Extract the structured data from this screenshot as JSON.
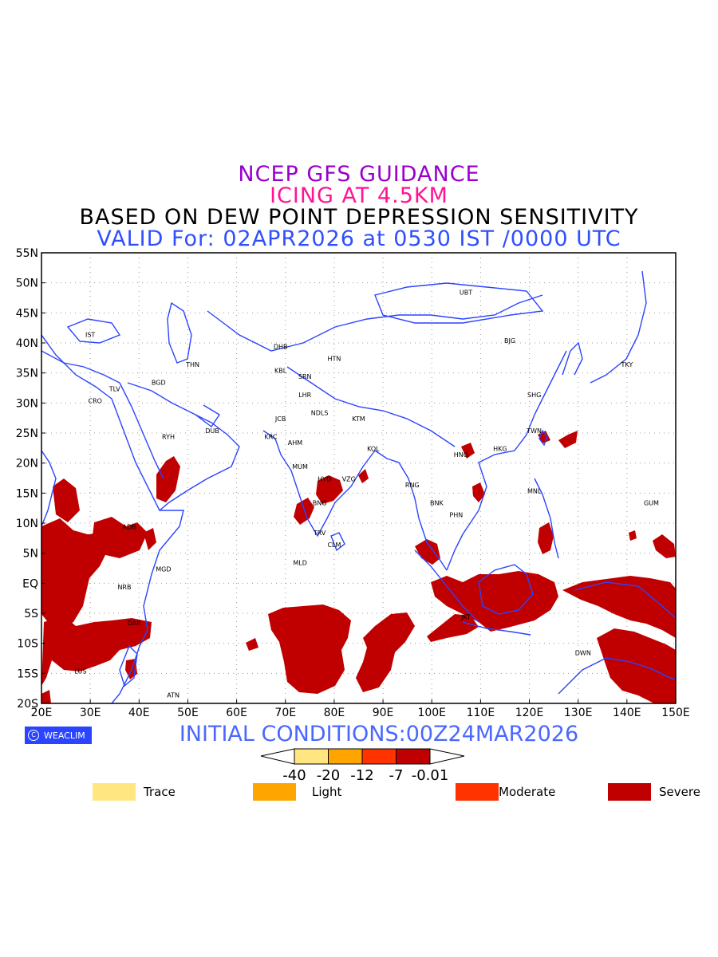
{
  "titles": {
    "line1": "NCEP GFS GUIDANCE",
    "line2": "ICING AT 4.5KM",
    "line3": "BASED ON DEW POINT DEPRESSION SENSITIVITY",
    "line4": "VALID For: 02APR2026 at 0530 IST /0000 UTC"
  },
  "initial_conditions": "INITIAL CONDITIONS:00Z24MAR2026",
  "logo_text": "WEACLIM",
  "axes": {
    "lon_labels": [
      "20E",
      "30E",
      "40E",
      "50E",
      "60E",
      "70E",
      "80E",
      "90E",
      "100E",
      "110E",
      "120E",
      "130E",
      "140E",
      "150E"
    ],
    "lat_labels": [
      "55N",
      "50N",
      "45N",
      "40N",
      "35N",
      "30N",
      "25N",
      "20N",
      "15N",
      "10N",
      "5N",
      "EQ",
      "5S",
      "10S",
      "15S",
      "20S"
    ]
  },
  "colorbar": {
    "ticks": [
      "-40",
      "-20",
      "-12",
      "-7",
      "-0.01"
    ],
    "colors": [
      "#ffe680",
      "#ffa500",
      "#ff3300",
      "#c00000"
    ]
  },
  "legend": [
    {
      "label": "Trace",
      "color": "#ffe680"
    },
    {
      "label": "Light",
      "color": "#ffa500"
    },
    {
      "label": "Moderate",
      "color": "#ff3300"
    },
    {
      "label": "Severe",
      "color": "#c00000"
    }
  ],
  "stations": [
    {
      "name": "IST",
      "lon": 30,
      "lat": 41
    },
    {
      "name": "TLV",
      "lon": 35,
      "lat": 32
    },
    {
      "name": "CRO",
      "lon": 31,
      "lat": 30
    },
    {
      "name": "BGD",
      "lon": 44,
      "lat": 33
    },
    {
      "name": "THN",
      "lon": 51,
      "lat": 36
    },
    {
      "name": "DHB",
      "lon": 69,
      "lat": 39
    },
    {
      "name": "HTN",
      "lon": 80,
      "lat": 37
    },
    {
      "name": "KBL",
      "lon": 69,
      "lat": 35
    },
    {
      "name": "SRN",
      "lon": 74,
      "lat": 34
    },
    {
      "name": "LHR",
      "lon": 74,
      "lat": 31
    },
    {
      "name": "JCB",
      "lon": 69,
      "lat": 27
    },
    {
      "name": "NDLS",
      "lon": 77,
      "lat": 28
    },
    {
      "name": "KTM",
      "lon": 85,
      "lat": 27
    },
    {
      "name": "RYH",
      "lon": 46,
      "lat": 24
    },
    {
      "name": "DUB",
      "lon": 55,
      "lat": 25
    },
    {
      "name": "KRC",
      "lon": 67,
      "lat": 24
    },
    {
      "name": "AHM",
      "lon": 72,
      "lat": 23
    },
    {
      "name": "KOL",
      "lon": 88,
      "lat": 22
    },
    {
      "name": "MUM",
      "lon": 73,
      "lat": 19
    },
    {
      "name": "HYD",
      "lon": 78,
      "lat": 17
    },
    {
      "name": "VZG",
      "lon": 83,
      "lat": 17
    },
    {
      "name": "BNG",
      "lon": 77,
      "lat": 13
    },
    {
      "name": "TRV",
      "lon": 77,
      "lat": 8
    },
    {
      "name": "CLM",
      "lon": 80,
      "lat": 6
    },
    {
      "name": "MLD",
      "lon": 73,
      "lat": 3
    },
    {
      "name": "ADB",
      "lon": 38,
      "lat": 9
    },
    {
      "name": "MGD",
      "lon": 45,
      "lat": 2
    },
    {
      "name": "NRB",
      "lon": 37,
      "lat": -1
    },
    {
      "name": "DAR",
      "lon": 39,
      "lat": -7
    },
    {
      "name": "LUS",
      "lon": 28,
      "lat": -15
    },
    {
      "name": "ATN",
      "lon": 47,
      "lat": -19
    },
    {
      "name": "RNG",
      "lon": 96,
      "lat": 16
    },
    {
      "name": "BNK",
      "lon": 101,
      "lat": 13
    },
    {
      "name": "PHN",
      "lon": 105,
      "lat": 11
    },
    {
      "name": "HNO",
      "lon": 106,
      "lat": 21
    },
    {
      "name": "HKG",
      "lon": 114,
      "lat": 22
    },
    {
      "name": "TWN",
      "lon": 121,
      "lat": 25
    },
    {
      "name": "SHG",
      "lon": 121,
      "lat": 31
    },
    {
      "name": "BJG",
      "lon": 116,
      "lat": 40
    },
    {
      "name": "UBT",
      "lon": 107,
      "lat": 48
    },
    {
      "name": "TKY",
      "lon": 140,
      "lat": 36
    },
    {
      "name": "MNL",
      "lon": 121,
      "lat": 15
    },
    {
      "name": "GUM",
      "lon": 145,
      "lat": 13
    },
    {
      "name": "JKT",
      "lon": 107,
      "lat": -6
    },
    {
      "name": "DWN",
      "lon": 131,
      "lat": -12
    }
  ]
}
